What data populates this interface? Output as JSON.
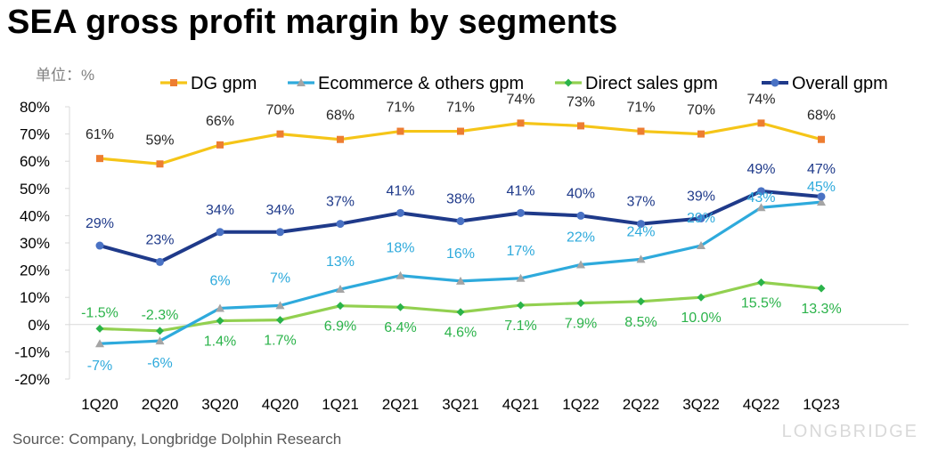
{
  "header": {
    "title": "SEA gross profit margin by segments",
    "unit": "单位：%"
  },
  "footer": {
    "source": "Source: Company, Longbridge Dolphin Research",
    "brand": "LONGBRIDGE"
  },
  "chart_data": {
    "type": "line",
    "title": "SEA gross profit margin by segments",
    "categories": [
      "1Q20",
      "2Q20",
      "3Q20",
      "4Q20",
      "1Q21",
      "2Q21",
      "3Q21",
      "4Q21",
      "1Q22",
      "2Q22",
      "3Q22",
      "4Q22",
      "1Q23"
    ],
    "ylim": [
      -20,
      80
    ],
    "yticks": [
      "-20%",
      "-10%",
      "0%",
      "10%",
      "20%",
      "30%",
      "40%",
      "50%",
      "60%",
      "70%",
      "80%"
    ],
    "ytick_values": [
      -20,
      -10,
      0,
      10,
      20,
      30,
      40,
      50,
      60,
      70,
      80
    ],
    "grid": false,
    "legend_position": "top",
    "series": [
      {
        "name": "DG gpm",
        "color": "#f5c518",
        "marker_color": "#ed7d31",
        "marker": "square",
        "values": [
          61,
          59,
          66,
          70,
          68,
          71,
          71,
          74,
          73,
          71,
          70,
          74,
          68
        ],
        "labels": [
          "61%",
          "59%",
          "66%",
          "70%",
          "68%",
          "71%",
          "71%",
          "74%",
          "73%",
          "71%",
          "70%",
          "74%",
          "68%"
        ],
        "label_color": "#262626"
      },
      {
        "name": "Ecommerce & others gpm",
        "color": "#2eaadc",
        "marker_color": "#a5a5a5",
        "marker": "triangle",
        "values": [
          -7,
          -6,
          6,
          7,
          13,
          18,
          16,
          17,
          22,
          24,
          29,
          43,
          45
        ],
        "labels": [
          "-7%",
          "-6%",
          "6%",
          "7%",
          "13%",
          "18%",
          "16%",
          "17%",
          "22%",
          "24%",
          "29%",
          "43%",
          "45%"
        ],
        "label_color": "#2eaadc"
      },
      {
        "name": "Direct sales gpm",
        "color": "#92d050",
        "marker_color": "#2bb34a",
        "marker": "diamond",
        "values": [
          -1.5,
          -2.3,
          1.4,
          1.7,
          6.9,
          6.4,
          4.6,
          7.1,
          7.9,
          8.5,
          10.0,
          15.5,
          13.3
        ],
        "labels": [
          "-1.5%",
          "-2.3%",
          "1.4%",
          "1.7%",
          "6.9%",
          "6.4%",
          "4.6%",
          "7.1%",
          "7.9%",
          "8.5%",
          "10.0%",
          "15.5%",
          "13.3%"
        ],
        "label_color": "#2bb34a"
      },
      {
        "name": "Overall gpm",
        "color": "#1f3a8a",
        "marker_color": "#4a72c4",
        "marker": "circle",
        "values": [
          29,
          23,
          34,
          34,
          37,
          41,
          38,
          41,
          40,
          37,
          39,
          49,
          47
        ],
        "labels": [
          "29%",
          "23%",
          "34%",
          "34%",
          "37%",
          "41%",
          "38%",
          "41%",
          "40%",
          "37%",
          "39%",
          "49%",
          "47%"
        ],
        "label_color": "#1f3a8a"
      }
    ]
  }
}
